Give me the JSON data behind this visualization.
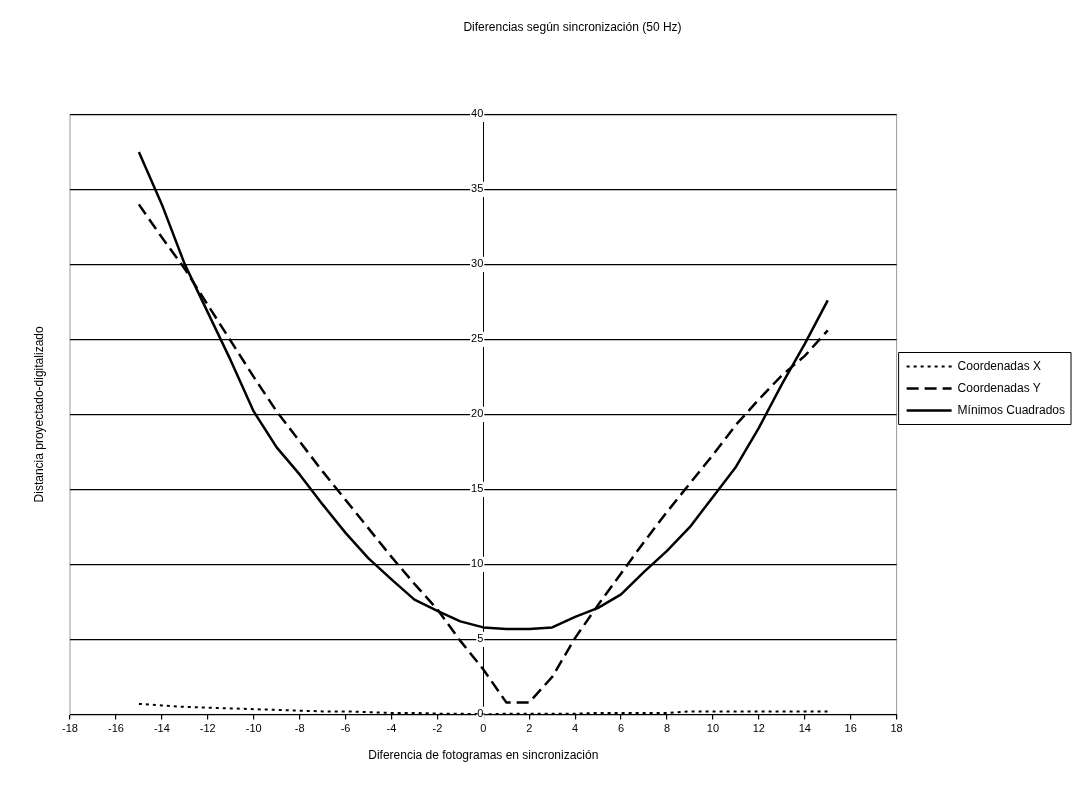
{
  "chart_data": {
    "type": "line",
    "title": "Diferencias según sincronización (50 Hz)",
    "xlabel": "Diferencia de fotogramas en sincronización",
    "ylabel": "Distancia proyectado-digitalizado",
    "xlim": [
      -18,
      18
    ],
    "xticks": [
      -18,
      -16,
      -14,
      -12,
      -10,
      -8,
      -6,
      -4,
      -2,
      0,
      2,
      4,
      6,
      8,
      10,
      12,
      14,
      16,
      18
    ],
    "ylim": [
      0,
      40
    ],
    "yticks": [
      0,
      5,
      10,
      15,
      20,
      25,
      30,
      35,
      40
    ],
    "grid": "y",
    "legend": "right",
    "marker": "none",
    "x": [
      -15,
      -14,
      -13,
      -12,
      -11,
      -10,
      -9,
      -8,
      -7,
      -6,
      -5,
      -4,
      -3,
      -2,
      -1,
      0,
      1,
      2,
      3,
      4,
      5,
      6,
      7,
      8,
      9,
      10,
      11,
      12,
      13,
      14,
      15
    ],
    "series": [
      {
        "name": "Coordenadas X",
        "color": "#000000",
        "line_style": "dotted",
        "values": [
          0.7,
          0.6,
          0.5,
          0.45,
          0.4,
          0.35,
          0.3,
          0.25,
          0.2,
          0.2,
          0.15,
          0.1,
          0.1,
          0.05,
          0.05,
          0,
          0.05,
          0.05,
          0.05,
          0.05,
          0.1,
          0.1,
          0.1,
          0.1,
          0.2,
          0.2,
          0.2,
          0.2,
          0.2,
          0.2,
          0.2
        ]
      },
      {
        "name": "Coordenadas Y",
        "color": "#000000",
        "line_style": "dashed",
        "values": [
          34.0,
          31.8,
          29.7,
          27.3,
          24.9,
          22.5,
          20.2,
          18.2,
          16.2,
          14.3,
          12.4,
          10.5,
          8.7,
          7.0,
          4.9,
          3.0,
          0.8,
          0.8,
          2.5,
          5.1,
          7.3,
          9.4,
          11.5,
          13.5,
          15.4,
          17.3,
          19.3,
          21.0,
          22.6,
          23.9,
          25.6
        ]
      },
      {
        "name": "Mínimos Cuadrados",
        "color": "#000000",
        "line_style": "solid",
        "values": [
          37.5,
          34.0,
          30.0,
          26.8,
          23.6,
          20.2,
          17.8,
          16.0,
          14.0,
          12.1,
          10.4,
          9.0,
          7.65,
          6.9,
          6.2,
          5.8,
          5.7,
          5.7,
          5.8,
          6.5,
          7.1,
          8.0,
          9.5,
          10.9,
          12.5,
          14.5,
          16.5,
          19.1,
          22.0,
          24.7,
          27.6
        ]
      }
    ]
  }
}
